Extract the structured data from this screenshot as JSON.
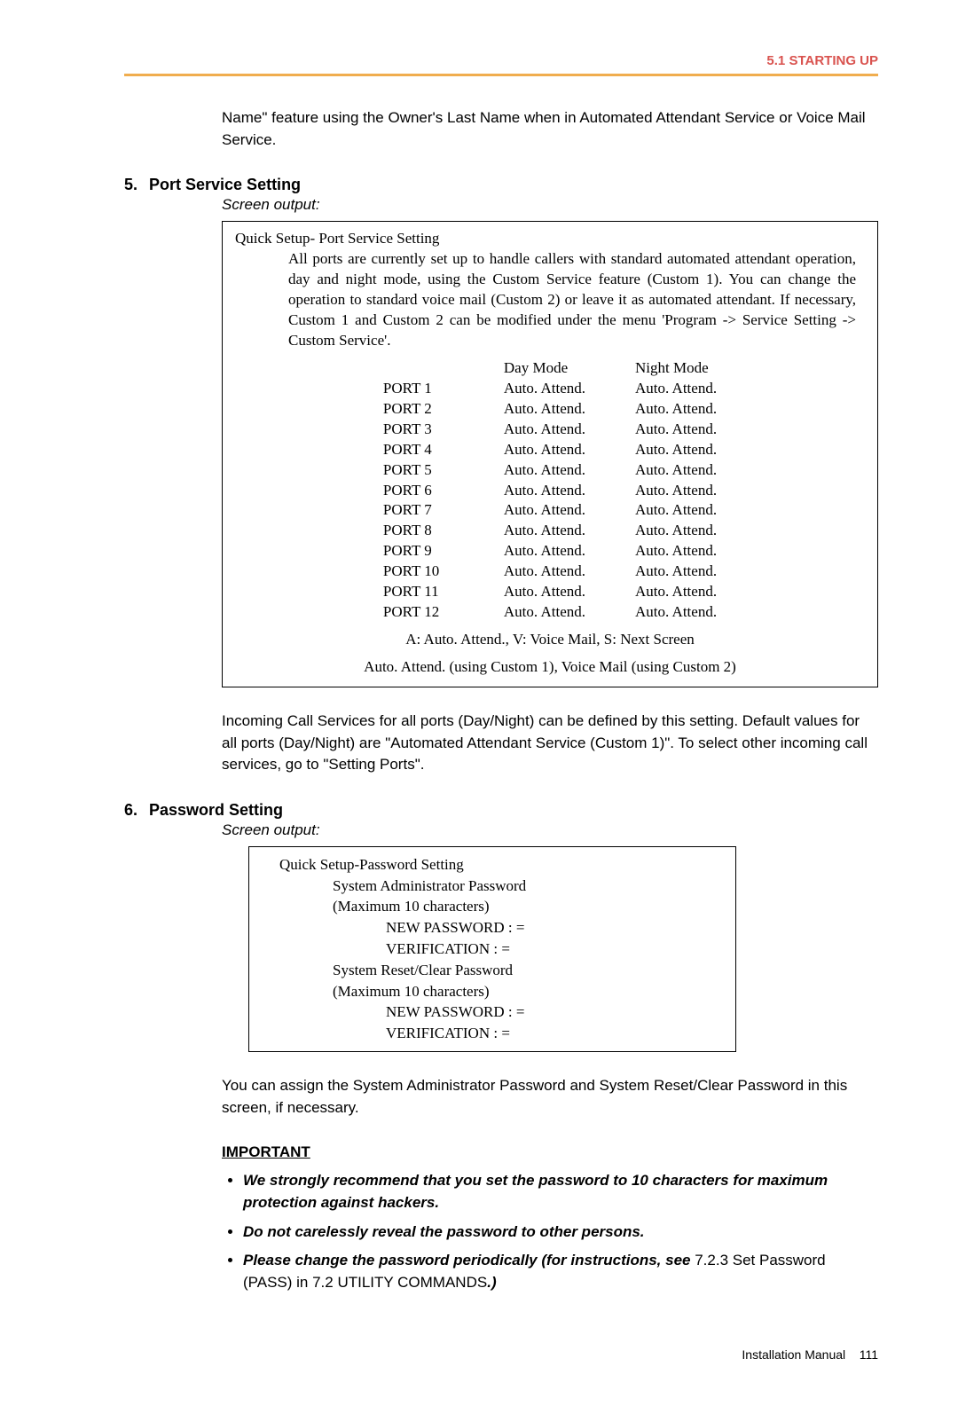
{
  "header": {
    "section": "5.1 STARTING UP"
  },
  "intro": {
    "text": "Name\" feature using the Owner's Last Name when in Automated Attendant Service or Voice Mail Service."
  },
  "step5": {
    "num": "5.",
    "title": "Port Service Setting",
    "screen_label": "Screen output:",
    "box_title": "Quick Setup- Port Service Setting",
    "box_body": "All ports are currently set up to handle callers with standard automated attendant operation, day and night mode, using the Custom Service feature (Custom 1). You can change the operation to standard voice mail (Custom 2) or leave it as automated attendant. If necessary, Custom 1 and Custom 2 can be modified under the menu 'Program -> Service Setting -> Custom Service'.",
    "col_day": "Day Mode",
    "col_night": "Night Mode",
    "rows": [
      {
        "p": "PORT  1",
        "d": "Auto. Attend.",
        "n": "Auto. Attend."
      },
      {
        "p": "PORT  2",
        "d": "Auto. Attend.",
        "n": "Auto. Attend."
      },
      {
        "p": "PORT  3",
        "d": "Auto. Attend.",
        "n": "Auto. Attend."
      },
      {
        "p": "PORT  4",
        "d": "Auto. Attend.",
        "n": "Auto. Attend."
      },
      {
        "p": "PORT  5",
        "d": "Auto. Attend.",
        "n": "Auto. Attend."
      },
      {
        "p": "PORT  6",
        "d": "Auto. Attend.",
        "n": "Auto. Attend."
      },
      {
        "p": "PORT  7",
        "d": "Auto. Attend.",
        "n": "Auto. Attend."
      },
      {
        "p": "PORT  8",
        "d": "Auto. Attend.",
        "n": "Auto. Attend."
      },
      {
        "p": "PORT  9",
        "d": "Auto. Attend.",
        "n": "Auto. Attend."
      },
      {
        "p": "PORT 10",
        "d": "Auto. Attend.",
        "n": "Auto. Attend."
      },
      {
        "p": "PORT 11",
        "d": "Auto. Attend.",
        "n": "Auto. Attend."
      },
      {
        "p": "PORT 12",
        "d": "Auto. Attend.",
        "n": "Auto. Attend."
      }
    ],
    "foot1": "A: Auto. Attend., V: Voice Mail, S: Next Screen",
    "foot2": "Auto. Attend. (using Custom 1), Voice Mail (using Custom 2)",
    "desc": "Incoming Call Services for all ports (Day/Night) can be defined by this setting. Default values for all ports (Day/Night) are \"Automated Attendant Service (Custom 1)\". To select other incoming call services, go to \"Setting Ports\"."
  },
  "step6": {
    "num": "6.",
    "title": "Password Setting",
    "screen_label": "Screen output:",
    "lines": {
      "l1": "Quick Setup-Password Setting",
      "l2": "System Administrator Password",
      "l3": "(Maximum 10 characters)",
      "l4": "NEW PASSWORD : =",
      "l5": "VERIFICATION : =",
      "l6": "System Reset/Clear Password",
      "l7": "(Maximum 10 characters)",
      "l8": "NEW PASSWORD : =",
      "l9": "VERIFICATION  : ="
    },
    "desc": "You can assign the System Administrator Password and System Reset/Clear Password in this screen, if necessary.",
    "important_label": "IMPORTANT",
    "b1": "We strongly recommend that you set the password to 10 characters for maximum protection against hackers.",
    "b2": "Do not carelessly reveal the password to other persons.",
    "b3a": "Please change the password periodically (for instructions, see ",
    "b3b": "7.2.3 Set Password (PASS) in 7.2 UTILITY COMMANDS",
    "b3c": ".)"
  },
  "footer": {
    "label": "Installation Manual",
    "page": "111"
  }
}
